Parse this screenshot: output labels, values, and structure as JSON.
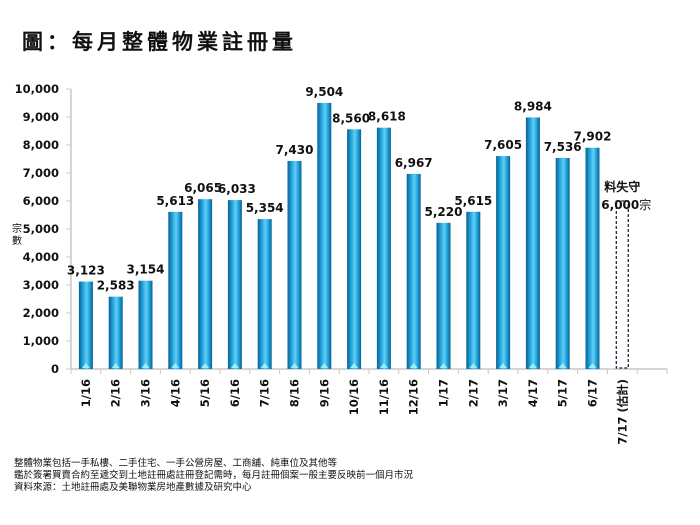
{
  "title": "圖：每月整體物業註冊量",
  "chart_data": {
    "type": "bar",
    "title": "圖：每月整體物業註冊量",
    "xlabel": "",
    "ylabel": "宗數",
    "ylim": [
      0,
      10000
    ],
    "yticks": [
      0,
      1000,
      2000,
      3000,
      4000,
      5000,
      6000,
      7000,
      8000,
      9000,
      10000
    ],
    "ytick_labels": [
      "0",
      "1,000",
      "2,000",
      "3,000",
      "4,000",
      "5,000",
      "6,000",
      "7,000",
      "8,000",
      "9,000",
      "10,000"
    ],
    "grid": false,
    "categories": [
      "1/16",
      "2/16",
      "3/16",
      "4/16",
      "5/16",
      "6/16",
      "7/16",
      "8/16",
      "9/16",
      "10/16",
      "11/16",
      "12/16",
      "1/17",
      "2/17",
      "3/17",
      "4/17",
      "5/17",
      "6/17",
      "7/17 (估計)"
    ],
    "values": [
      3123,
      2583,
      3154,
      5613,
      6065,
      6033,
      5354,
      7430,
      9504,
      8560,
      8618,
      6967,
      5220,
      5615,
      7605,
      8984,
      7536,
      7902,
      6000
    ],
    "data_labels": [
      "3,123",
      "2,583",
      "3,154",
      "5,613",
      "6,065",
      "6,033",
      "5,354",
      "7,430",
      "9,504",
      "8,560",
      "8,618",
      "6,967",
      "5,220",
      "5,615",
      "7,605",
      "8,984",
      "7,536",
      "7,902",
      ""
    ],
    "estimated_index": 18,
    "annotation": {
      "line1": "料失守",
      "line2": "6,000",
      "line2_suffix": "宗"
    },
    "colors": {
      "bar": "#1a9ad6",
      "bar_light": "#5fd0f5",
      "bar_dark": "#0b5f8e",
      "estimate_border": "#1b2a4a",
      "axis": "#c8c8c8"
    }
  },
  "footer": {
    "lines": [
      "整體物業包括一手私樓、二手住宅、一手公營房屋、工商舖、純車位及其他等",
      "鑑於簽署買賣合約至遞交到土地註冊處註冊登記需時，每月註冊個案一般主要反映前一個月市況",
      "資料來源：土地註冊處及美聯物業房地產數據及研究中心"
    ]
  }
}
